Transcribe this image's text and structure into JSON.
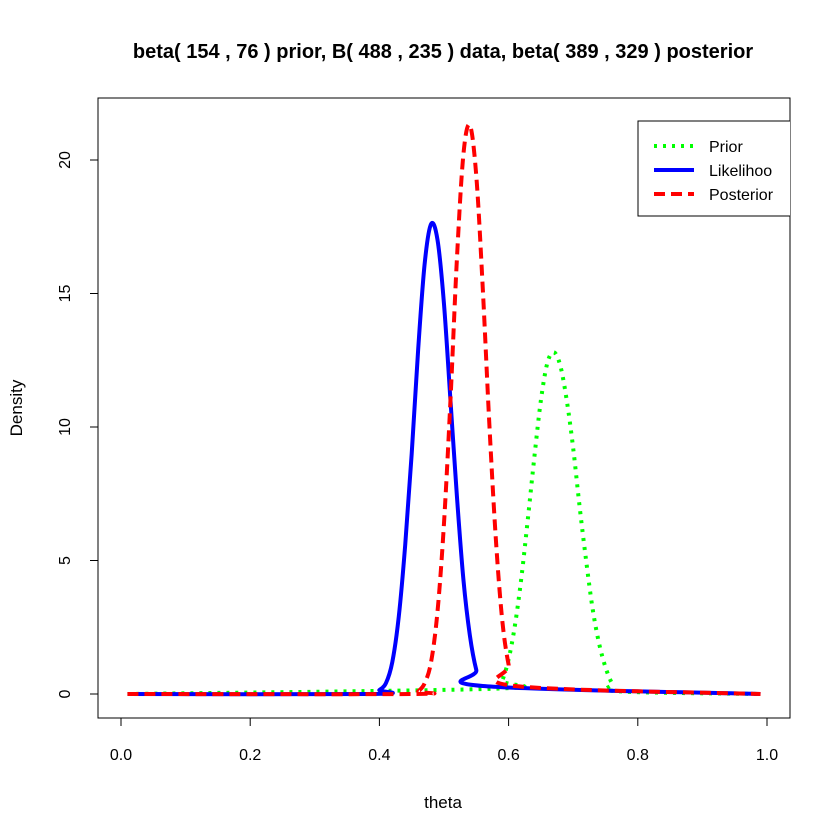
{
  "chart_data": {
    "type": "line",
    "title": "beta( 154 , 76 ) prior, B( 488 , 235 ) data, beta( 389 , 329 ) posterior",
    "xlabel": "theta",
    "ylabel": "Density",
    "xlim": [
      0,
      1
    ],
    "ylim": [
      0,
      21.5
    ],
    "x_ticks": [
      0.0,
      0.2,
      0.4,
      0.6,
      0.8,
      1.0
    ],
    "x_tick_labels": [
      "0.0",
      "0.2",
      "0.4",
      "0.6",
      "0.8",
      "1.0"
    ],
    "y_ticks": [
      0,
      5,
      10,
      15,
      20
    ],
    "y_tick_labels": [
      "0",
      "5",
      "10",
      "15",
      "20"
    ],
    "grid": false,
    "legend_position": "top-right",
    "series": [
      {
        "name": "Prior",
        "color": "#00ff00",
        "style": "dotted",
        "x": [
          0.01,
          0.58,
          0.59,
          0.6,
          0.61,
          0.62,
          0.63,
          0.64,
          0.65,
          0.66,
          0.67,
          0.68,
          0.69,
          0.7,
          0.71,
          0.72,
          0.73,
          0.74,
          0.75,
          0.76,
          0.77,
          0.99
        ],
        "y": [
          0,
          0.2,
          0.5,
          1.3,
          2.6,
          4.4,
          6.6,
          8.9,
          11.0,
          12.4,
          12.8,
          12.3,
          11.0,
          9.2,
          7.0,
          5.0,
          3.2,
          1.9,
          1.0,
          0.4,
          0.1,
          0
        ]
      },
      {
        "name": "Likelihood",
        "color": "#0000ff",
        "style": "solid",
        "x": [
          0.01,
          0.39,
          0.4,
          0.41,
          0.42,
          0.43,
          0.44,
          0.45,
          0.46,
          0.47,
          0.48,
          0.49,
          0.5,
          0.51,
          0.52,
          0.53,
          0.54,
          0.55,
          0.56,
          0.99
        ],
        "y": [
          0,
          0,
          0.15,
          0.4,
          1.2,
          2.9,
          5.6,
          9.0,
          12.9,
          16.1,
          17.6,
          17.0,
          14.6,
          11.0,
          7.4,
          4.3,
          2.2,
          0.9,
          0.3,
          0
        ]
      },
      {
        "name": "Posterior",
        "color": "#ff0000",
        "style": "dashed",
        "x": [
          0.01,
          0.45,
          0.46,
          0.47,
          0.48,
          0.49,
          0.5,
          0.51,
          0.52,
          0.53,
          0.54,
          0.55,
          0.56,
          0.57,
          0.58,
          0.59,
          0.6,
          0.61,
          0.99
        ],
        "y": [
          0,
          0,
          0.1,
          0.4,
          1.2,
          3.1,
          6.4,
          11.0,
          16.3,
          20.2,
          21.3,
          19.4,
          15.2,
          10.2,
          5.9,
          2.8,
          1.1,
          0.3,
          0
        ]
      }
    ]
  },
  "legend": {
    "items": [
      {
        "label": "Prior",
        "color": "#00ff00",
        "style": "dotted"
      },
      {
        "label": "Likelihoo",
        "color": "#0000ff",
        "style": "solid"
      },
      {
        "label": "Posterior",
        "color": "#ff0000",
        "style": "dashed"
      }
    ]
  }
}
